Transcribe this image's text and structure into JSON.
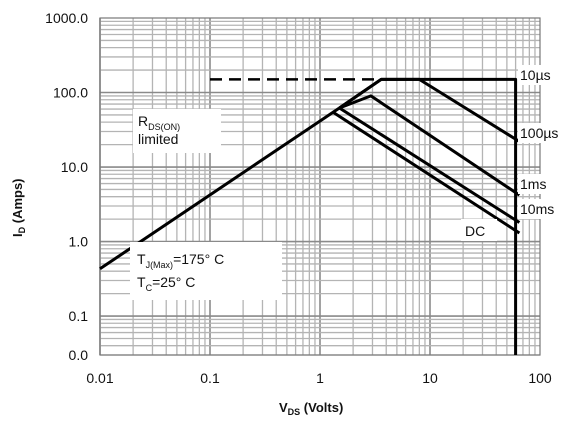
{
  "chart_data": {
    "type": "line",
    "xscale": "log",
    "yscale": "log",
    "xlim": [
      0.01,
      100
    ],
    "ylim": [
      0.03,
      1000
    ],
    "grid": true,
    "xlabel": {
      "main": "V",
      "sub": "DS",
      "rest": " (Volts)"
    },
    "ylabel": {
      "main": "I",
      "sub": "D",
      "rest": " (Amps)"
    },
    "xticks": [
      {
        "value": 0.01,
        "label": "0.01"
      },
      {
        "value": 0.1,
        "label": "0.1"
      },
      {
        "value": 1,
        "label": "1"
      },
      {
        "value": 10,
        "label": "10"
      },
      {
        "value": 100,
        "label": "100"
      }
    ],
    "yticks": [
      {
        "value": 0.03,
        "label": "0.0"
      },
      {
        "value": 0.1,
        "label": "0.1"
      },
      {
        "value": 1,
        "label": "1.0"
      },
      {
        "value": 10,
        "label": "10.0"
      },
      {
        "value": 100,
        "label": "100.0"
      },
      {
        "value": 1000,
        "label": "1000.0"
      }
    ],
    "series": [
      {
        "name": "RDS(ON) limited",
        "style": "solid",
        "points": [
          [
            0.01,
            0.43
          ],
          [
            1.5,
            62
          ]
        ]
      },
      {
        "name": "10µs",
        "style": "solid",
        "points": [
          [
            1.5,
            62
          ],
          [
            3.6,
            150
          ],
          [
            60,
            150
          ],
          [
            60,
            0.03
          ]
        ]
      },
      {
        "name": "100µs",
        "style": "solid",
        "points": [
          [
            1.5,
            62
          ],
          [
            3.6,
            150
          ],
          [
            8,
            150
          ],
          [
            65,
            22
          ]
        ]
      },
      {
        "name": "1ms",
        "style": "solid",
        "points": [
          [
            1.5,
            62
          ],
          [
            2.9,
            90
          ],
          [
            65,
            4.2
          ]
        ]
      },
      {
        "name": "10ms",
        "style": "solid",
        "points": [
          [
            1.5,
            62
          ],
          [
            65,
            1.8
          ]
        ]
      },
      {
        "name": "DC",
        "style": "solid",
        "points": [
          [
            1.3,
            55
          ],
          [
            65,
            1.3
          ]
        ]
      },
      {
        "name": "limit",
        "style": "dashed",
        "points": [
          [
            0.1,
            150
          ],
          [
            3.6,
            150
          ]
        ]
      }
    ],
    "curve_labels": [
      {
        "text": "10µs",
        "series": "10µs"
      },
      {
        "text": "100µs",
        "series": "100µs"
      },
      {
        "text": "1ms",
        "series": "1ms"
      },
      {
        "text": "10ms",
        "series": "10ms"
      },
      {
        "text": "DC",
        "series": "DC"
      }
    ],
    "annotations": {
      "rds": {
        "main": "R",
        "sub": "DS(ON)",
        "line2": "limited"
      },
      "tj": {
        "main": "T",
        "sub": "J(Max)",
        "rest": "=175° C"
      },
      "tc": {
        "main": "T",
        "sub": "C",
        "rest": "=25° C"
      }
    },
    "colors": {
      "grid": "#b4b4b4",
      "curve": "#000000"
    }
  }
}
